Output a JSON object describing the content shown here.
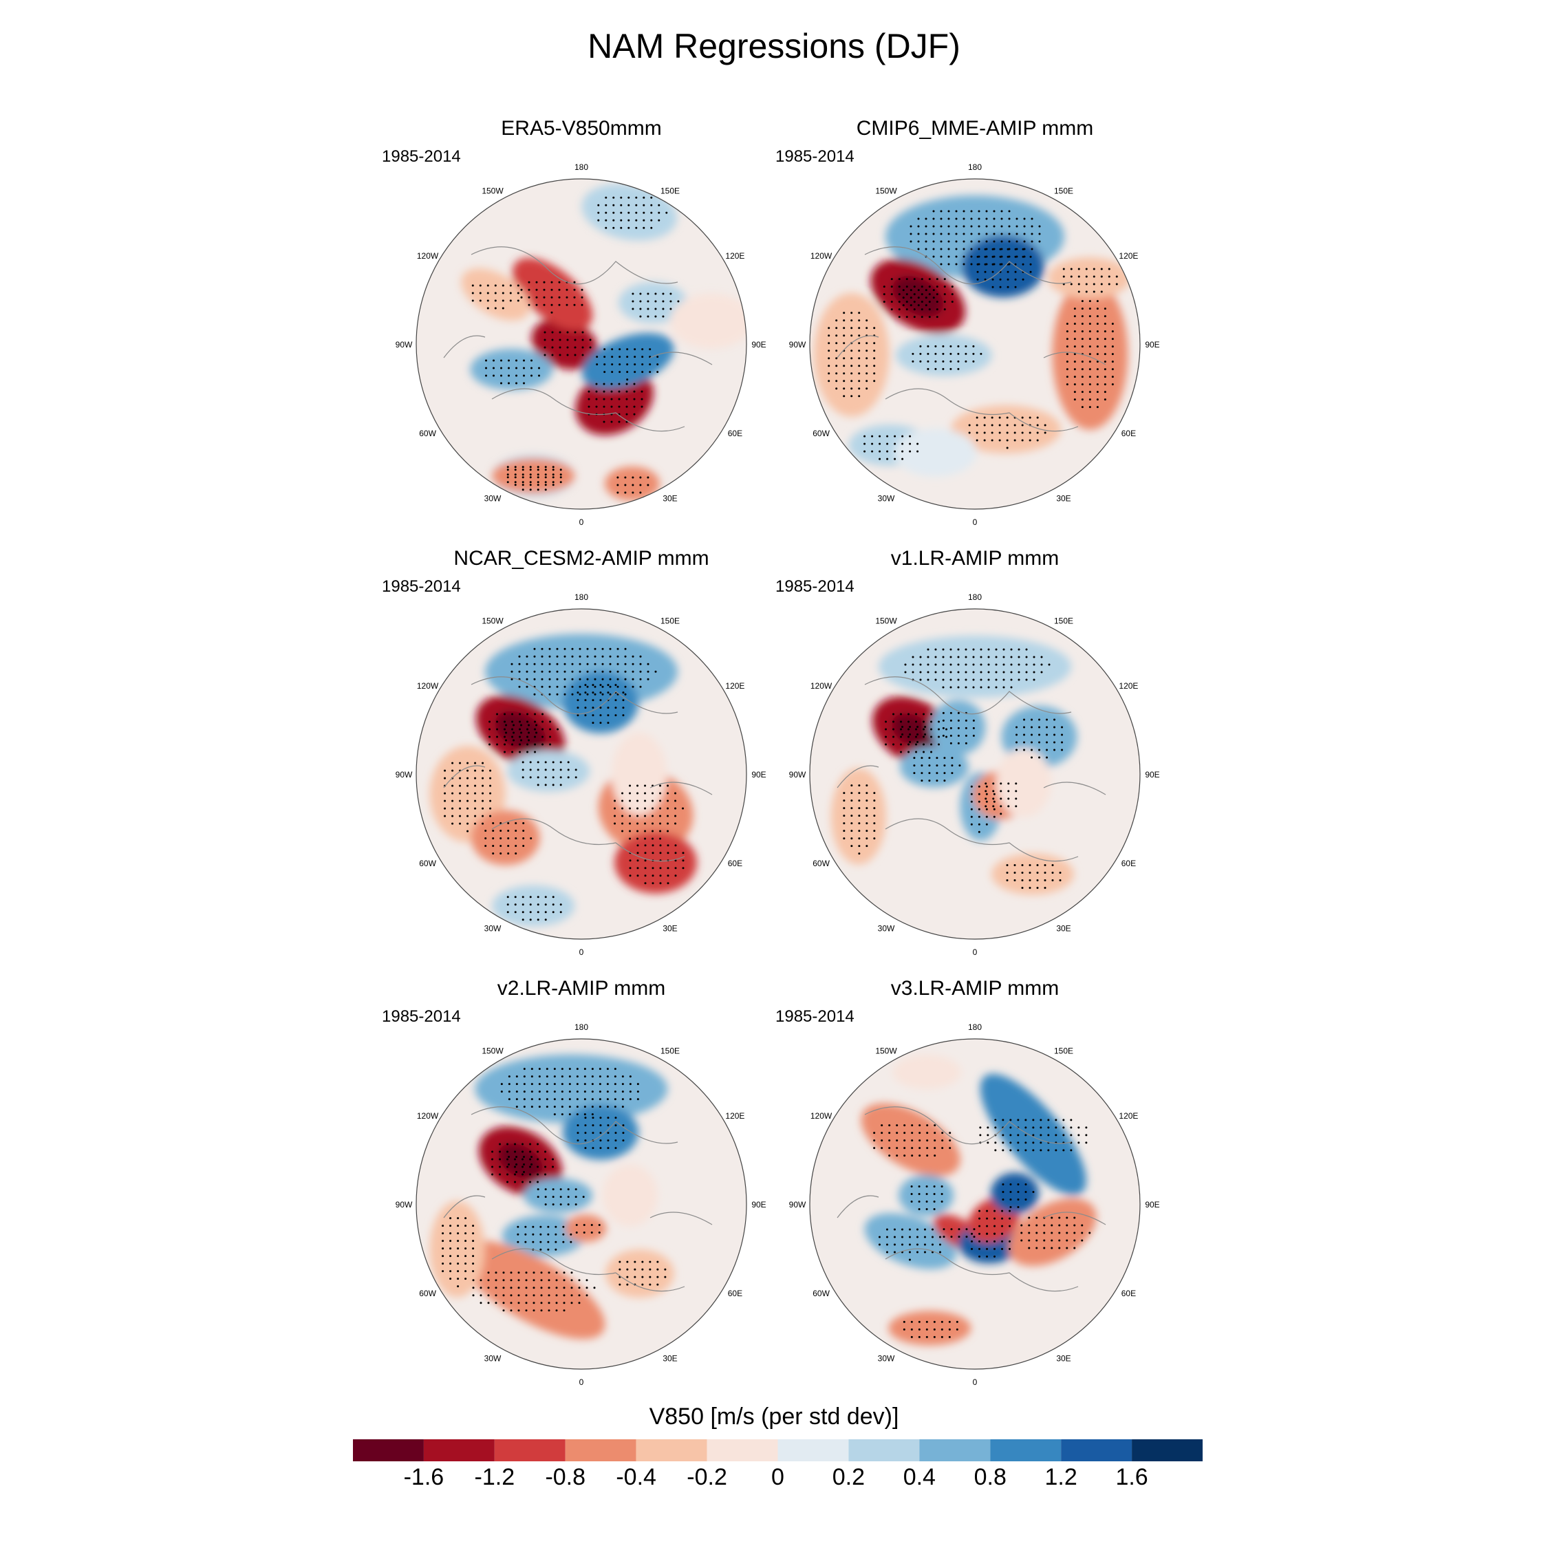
{
  "title": "NAM Regressions (DJF)",
  "colorbar": {
    "label": "V850 [m/s (per std dev)]",
    "colors": [
      "#67001f",
      "#a50f22",
      "#d13c3d",
      "#ec8c6e",
      "#f7c4a8",
      "#f8e4dc",
      "#e2ebf2",
      "#b6d5e7",
      "#77b2d6",
      "#3787c0",
      "#195ba3",
      "#053061"
    ],
    "ticks": [
      "-1.6",
      "-1.2",
      "-0.8",
      "-0.4",
      "-0.2",
      "0",
      "0.2",
      "0.4",
      "0.8",
      "1.2",
      "1.6"
    ]
  },
  "lon_labels": [
    "180",
    "150E",
    "120E",
    "90E",
    "60E",
    "30E",
    "0",
    "30W",
    "60W",
    "90W",
    "120W",
    "150W"
  ],
  "panels": [
    {
      "title": "ERA5-V850mmm",
      "period": "1985-2014"
    },
    {
      "title": "CMIP6_MME-AMIP  mmm",
      "period": "1985-2014"
    },
    {
      "title": "NCAR_CESM2-AMIP  mmm",
      "period": "1985-2014"
    },
    {
      "title": "v1.LR-AMIP  mmm",
      "period": "1985-2014"
    },
    {
      "title": "v2.LR-AMIP  mmm",
      "period": "1985-2014"
    },
    {
      "title": "v3.LR-AMIP  mmm",
      "period": "1985-2014"
    }
  ],
  "chart_data": {
    "type": "heatmap",
    "projection": "polar stereographic (Northern Hemisphere)",
    "variable": "V850 regression on NAM index",
    "units": "m/s (per std dev)",
    "season": "DJF",
    "period": "1985-2014",
    "levels": [
      -1.6,
      -1.2,
      -0.8,
      -0.4,
      -0.2,
      0,
      0.2,
      0.4,
      0.8,
      1.2,
      1.6
    ],
    "panels": [
      "ERA5-V850mmm",
      "CMIP6_MME-AMIP  mmm",
      "NCAR_CESM2-AMIP  mmm",
      "v1.LR-AMIP  mmm",
      "v2.LR-AMIP  mmm",
      "v3.LR-AMIP  mmm"
    ]
  }
}
